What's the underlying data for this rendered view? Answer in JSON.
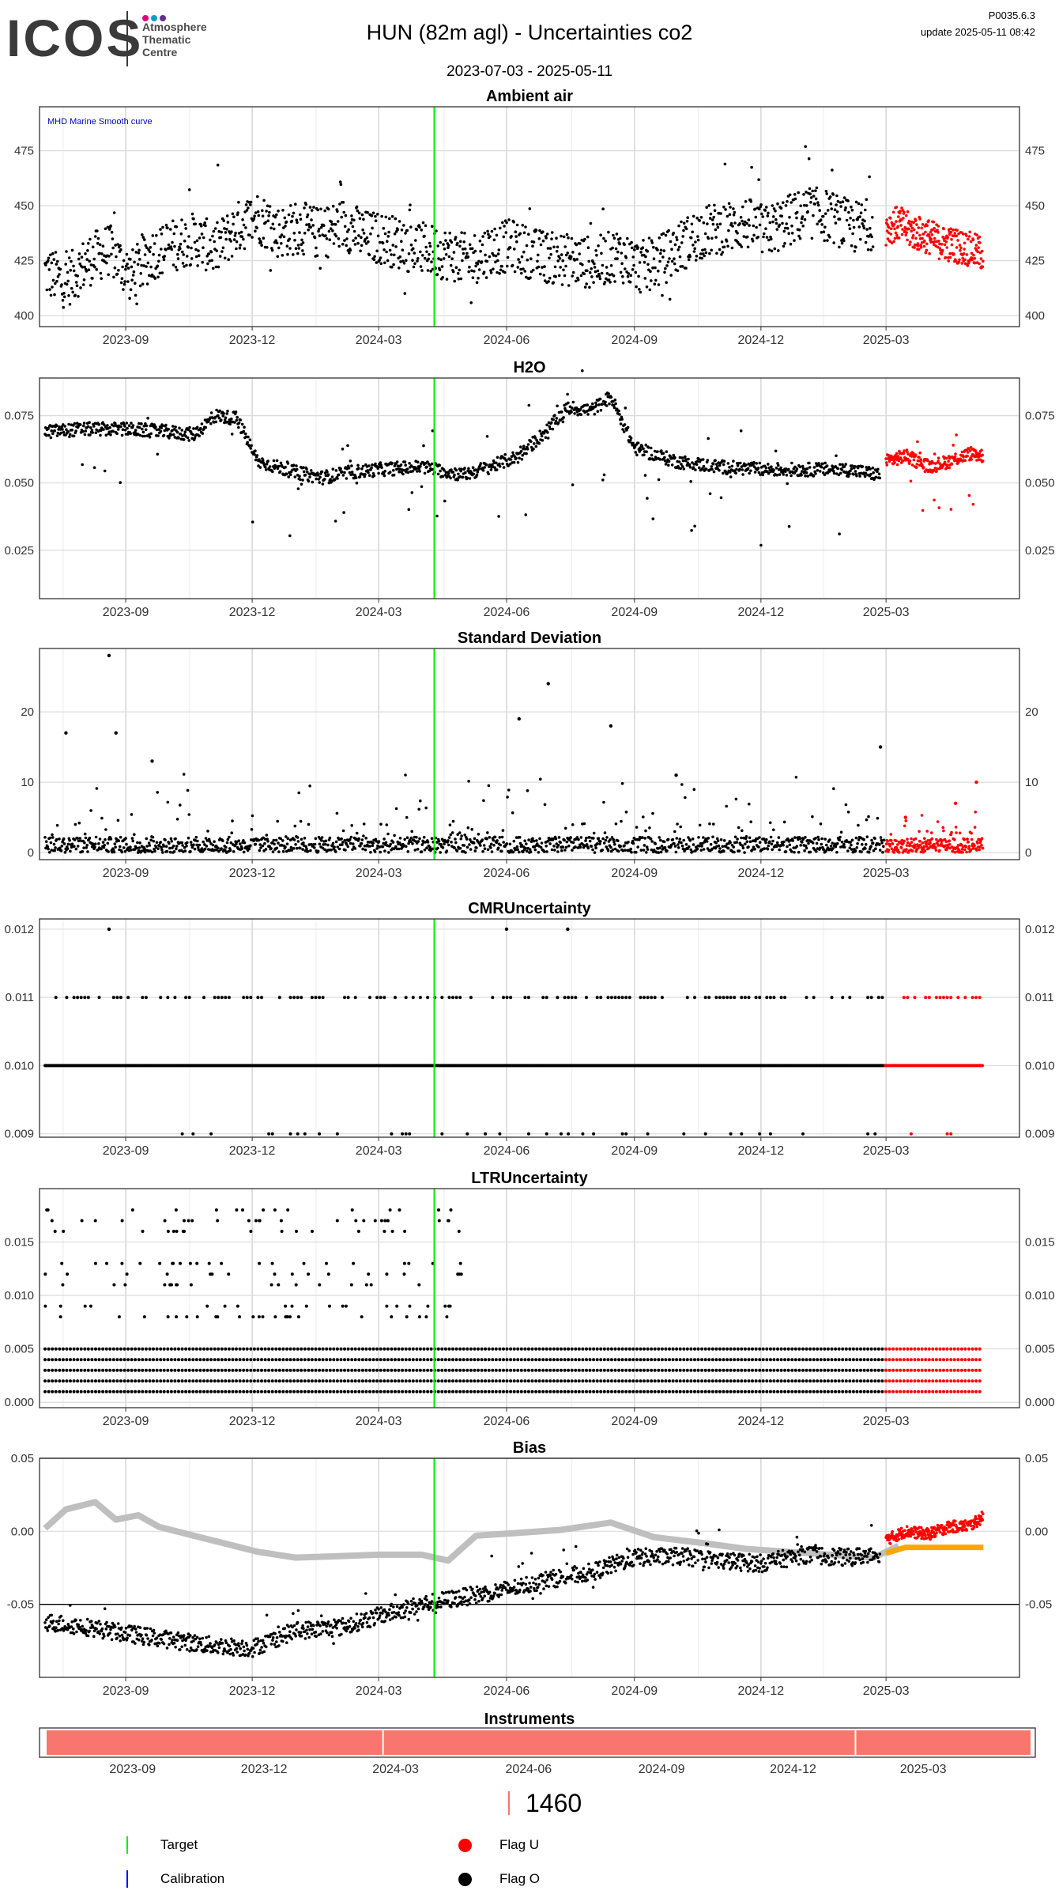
{
  "header": {
    "logo_text": "ICOS",
    "logo_subtitle": "Atmosphere\nThematic\nCentre",
    "logo_dot_colors": [
      "#e5007d",
      "#00a0c6",
      "#662d91"
    ],
    "title": "HUN  (82m agl) - Uncertainties co2",
    "version": "P0035.6.3",
    "update": "update  2025-05-11 08:42",
    "date_range": "2023-07-03 - 2025-05-11"
  },
  "colors": {
    "flag_o": "#000000",
    "flag_u": "#ff0000",
    "target": "#00ee00",
    "calibration": "#0000ff",
    "smooth_curve": "#bfbfbf",
    "bias_flagged": "#ffa500",
    "instrument": "#f8766d"
  },
  "chart_data": [
    {
      "title": "Ambient air",
      "type": "scatter",
      "annotation": "MHD Marine Smooth curve",
      "x_tick_labels": [
        "2023-09",
        "2023-12",
        "2024-03",
        "2024-06",
        "2024-09",
        "2024-12",
        "2025-03"
      ],
      "y_ticks": [
        400,
        425,
        450,
        475
      ],
      "y_tick_labels": [
        "400",
        "425",
        "450",
        "475"
      ],
      "ylim": [
        395,
        495
      ],
      "grid": true,
      "target_line_date": "2024-04-10",
      "series": [
        {
          "name": "Flag O",
          "x": [
            "2023-07-05",
            "2023-07-20",
            "2023-08-05",
            "2023-08-20",
            "2023-09-05",
            "2023-09-20",
            "2023-10-05",
            "2023-10-20",
            "2023-11-05",
            "2023-11-20",
            "2023-12-05",
            "2023-12-20",
            "2024-01-05",
            "2024-01-20",
            "2024-02-05",
            "2024-02-20",
            "2024-03-05",
            "2024-03-20",
            "2024-04-05",
            "2024-04-20",
            "2024-05-05",
            "2024-05-20",
            "2024-06-05",
            "2024-06-20",
            "2024-07-05",
            "2024-07-20",
            "2024-08-05",
            "2024-08-20",
            "2024-09-05",
            "2024-09-20",
            "2024-10-05",
            "2024-10-20",
            "2024-11-05",
            "2024-11-20",
            "2024-12-05",
            "2024-12-20",
            "2025-01-05",
            "2025-01-20",
            "2025-02-05",
            "2025-02-20"
          ],
          "y": [
            420,
            415,
            425,
            430,
            418,
            428,
            432,
            435,
            430,
            440,
            445,
            438,
            440,
            437,
            442,
            436,
            435,
            432,
            430,
            428,
            425,
            430,
            432,
            428,
            426,
            425,
            424,
            428,
            422,
            425,
            432,
            438,
            440,
            442,
            438,
            443,
            447,
            445,
            440,
            442
          ]
        },
        {
          "name": "Flag U",
          "x": [
            "2025-03-01",
            "2025-03-10",
            "2025-03-20",
            "2025-04-01",
            "2025-04-10",
            "2025-04-20",
            "2025-05-01",
            "2025-05-10"
          ],
          "y": [
            440,
            442,
            438,
            436,
            433,
            432,
            430,
            428
          ]
        }
      ]
    },
    {
      "title": "H2O",
      "type": "scatter",
      "x_tick_labels": [
        "2023-09",
        "2023-12",
        "2024-03",
        "2024-06",
        "2024-09",
        "2024-12",
        "2025-03"
      ],
      "y_ticks": [
        0.025,
        0.05,
        0.075
      ],
      "y_tick_labels": [
        "0.025",
        "0.050",
        "0.075"
      ],
      "ylim": [
        0.007,
        0.089
      ],
      "grid": true,
      "target_line_date": "2024-04-10",
      "series": [
        {
          "name": "Flag O",
          "x": [
            "2023-07-05",
            "2023-08-01",
            "2023-09-01",
            "2023-10-01",
            "2023-10-20",
            "2023-11-05",
            "2023-11-20",
            "2023-12-05",
            "2024-01-01",
            "2024-01-20",
            "2024-02-10",
            "2024-03-01",
            "2024-04-01",
            "2024-05-01",
            "2024-05-20",
            "2024-06-10",
            "2024-07-01",
            "2024-07-15",
            "2024-08-01",
            "2024-08-15",
            "2024-09-01",
            "2024-10-01",
            "2024-11-01",
            "2024-12-01",
            "2025-01-01",
            "2025-02-01",
            "2025-02-25"
          ],
          "y": [
            0.069,
            0.07,
            0.07,
            0.069,
            0.068,
            0.075,
            0.074,
            0.058,
            0.054,
            0.052,
            0.054,
            0.055,
            0.056,
            0.053,
            0.056,
            0.06,
            0.07,
            0.078,
            0.077,
            0.082,
            0.063,
            0.058,
            0.056,
            0.055,
            0.055,
            0.055,
            0.053
          ]
        },
        {
          "name": "Flag U",
          "x": [
            "2025-03-01",
            "2025-03-15",
            "2025-04-01",
            "2025-04-15",
            "2025-05-01",
            "2025-05-10"
          ],
          "y": [
            0.058,
            0.06,
            0.056,
            0.058,
            0.061,
            0.06
          ]
        }
      ]
    },
    {
      "title": "Standard Deviation",
      "type": "scatter",
      "x_tick_labels": [
        "2023-09",
        "2023-12",
        "2024-03",
        "2024-06",
        "2024-09",
        "2024-12",
        "2025-03"
      ],
      "y_ticks": [
        0,
        10,
        20
      ],
      "y_tick_labels": [
        "0",
        "10",
        "20"
      ],
      "ylim": [
        -1,
        29
      ],
      "grid": true,
      "target_line_date": "2024-04-10",
      "series": [
        {
          "name": "Flag O",
          "x": [
            "2023-07-20",
            "2023-08-20",
            "2023-08-25",
            "2023-09-20",
            "2024-06-10",
            "2024-07-01",
            "2024-08-15",
            "2024-10-01",
            "2025-02-25"
          ],
          "y": [
            17,
            28,
            17,
            13,
            19,
            24,
            18,
            11,
            15
          ]
        },
        {
          "name": "Flag U",
          "x": [
            "2025-03-15",
            "2025-04-20",
            "2025-05-05"
          ],
          "y": [
            5,
            7,
            10
          ]
        }
      ]
    },
    {
      "title": "CMRUncertainty",
      "type": "scatter",
      "x_tick_labels": [
        "2023-09",
        "2023-12",
        "2024-03",
        "2024-06",
        "2024-09",
        "2024-12",
        "2025-03"
      ],
      "y_ticks": [
        0.009,
        0.01,
        0.011,
        0.012
      ],
      "y_tick_labels": [
        "0.009",
        "0.010",
        "0.011",
        "0.012"
      ],
      "ylim": [
        0.00895,
        0.01215
      ],
      "grid": true,
      "target_line_date": "2024-04-10",
      "levels": [
        0.009,
        0.01,
        0.011
      ],
      "outliers": {
        "x": [
          "2023-08-20",
          "2024-06-01",
          "2024-07-15"
        ],
        "y": [
          0.012,
          0.012,
          0.012
        ]
      }
    },
    {
      "title": "LTRUncertainty",
      "type": "scatter",
      "x_tick_labels": [
        "2023-09",
        "2023-12",
        "2024-03",
        "2024-06",
        "2024-09",
        "2024-12",
        "2025-03"
      ],
      "y_ticks": [
        0,
        0.005,
        0.01,
        0.015
      ],
      "y_tick_labels": [
        "0.000",
        "0.005",
        "0.010",
        "0.015"
      ],
      "ylim": [
        -0.0005,
        0.02
      ],
      "grid": true,
      "target_line_date": "2024-04-10",
      "levels": [
        0.001,
        0.002,
        0.003,
        0.004,
        0.005
      ]
    },
    {
      "title": "Bias",
      "type": "line",
      "x_tick_labels": [
        "2023-09",
        "2023-12",
        "2024-03",
        "2024-06",
        "2024-09",
        "2024-12",
        "2025-03"
      ],
      "y_ticks": [
        -0.05,
        0,
        0.05
      ],
      "y_tick_labels": [
        "-0.05",
        "0.00",
        "0.05"
      ],
      "ylim": [
        -0.1,
        0.05
      ],
      "grid": true,
      "hlines": [
        -0.05,
        0.05
      ],
      "target_line_date": "2024-04-10",
      "series": [
        {
          "name": "MHD Marine Smooth curve",
          "x": [
            "2023-07-05",
            "2023-07-20",
            "2023-08-10",
            "2023-08-25",
            "2023-09-10",
            "2023-09-25",
            "2023-10-20",
            "2023-11-10",
            "2023-12-05",
            "2024-01-01",
            "2024-02-01",
            "2024-03-01",
            "2024-04-01",
            "2024-04-20",
            "2024-05-10",
            "2024-06-10",
            "2024-07-10",
            "2024-08-15",
            "2024-09-15",
            "2024-10-20",
            "2024-11-20",
            "2024-12-20",
            "2025-01-20",
            "2025-02-20",
            "2025-03-10"
          ],
          "y": [
            0.002,
            0.015,
            0.02,
            0.008,
            0.011,
            0.003,
            -0.003,
            -0.008,
            -0.014,
            -0.018,
            -0.017,
            -0.016,
            -0.016,
            -0.02,
            -0.003,
            -0.001,
            0.001,
            0.006,
            -0.004,
            -0.008,
            -0.012,
            -0.014,
            -0.016,
            -0.018,
            -0.01
          ]
        },
        {
          "name": "Flag O",
          "x": [
            "2023-07-05",
            "2023-08-01",
            "2023-09-01",
            "2023-10-01",
            "2023-11-01",
            "2023-12-01",
            "2024-01-01",
            "2024-02-01",
            "2024-03-01",
            "2024-04-01",
            "2024-05-01",
            "2024-06-01",
            "2024-07-01",
            "2024-08-01",
            "2024-09-01",
            "2024-10-01",
            "2024-11-01",
            "2024-12-01",
            "2025-01-01",
            "2025-02-01",
            "2025-02-25"
          ],
          "y": [
            -0.062,
            -0.065,
            -0.07,
            -0.074,
            -0.078,
            -0.08,
            -0.068,
            -0.066,
            -0.058,
            -0.05,
            -0.045,
            -0.04,
            -0.033,
            -0.028,
            -0.018,
            -0.017,
            -0.02,
            -0.022,
            -0.016,
            -0.018,
            -0.015
          ]
        },
        {
          "name": "Flag U",
          "x": [
            "2025-03-01",
            "2025-03-15",
            "2025-04-01",
            "2025-04-15",
            "2025-05-01",
            "2025-05-10"
          ],
          "y": [
            -0.006,
            0.0,
            -0.002,
            0.003,
            0.004,
            0.01
          ]
        },
        {
          "name": "bias flagged",
          "x": [
            "2025-03-01",
            "2025-03-15",
            "2025-04-01",
            "2025-04-15",
            "2025-05-01",
            "2025-05-10"
          ],
          "y": [
            -0.015,
            -0.011,
            -0.011,
            -0.011,
            -0.011,
            -0.011
          ]
        }
      ]
    },
    {
      "title": "Instruments",
      "type": "bar",
      "x_tick_labels": [
        "2023-09",
        "2023-12",
        "2024-03",
        "2024-06",
        "2024-09",
        "2024-12",
        "2025-03"
      ],
      "segments": [
        {
          "start": "2023-07-03",
          "end": "2024-02-20"
        },
        {
          "start": "2024-02-20",
          "end": "2025-01-10"
        },
        {
          "start": "2025-01-10",
          "end": "2025-05-11"
        }
      ],
      "instrument": "1460"
    }
  ],
  "legend": {
    "target": "Target",
    "calibration": "Calibration",
    "flag_u": "Flag U",
    "flag_o": "Flag O",
    "instrument_label": "1460"
  }
}
